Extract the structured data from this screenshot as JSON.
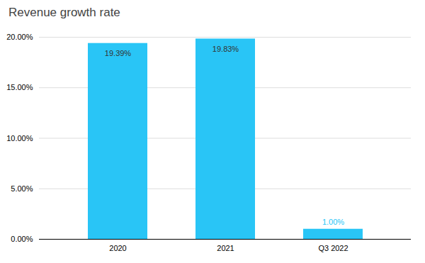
{
  "chart_data": {
    "type": "bar",
    "title": "Revenue growth rate",
    "categories": [
      "2020",
      "2021",
      "Q3 2022"
    ],
    "values": [
      19.39,
      19.83,
      1.0
    ],
    "value_labels": [
      "19.39%",
      "19.83%",
      "1.00%"
    ],
    "color": "#29C5F6",
    "ylim": [
      0,
      20
    ],
    "yticks": [
      {
        "value": 0,
        "label": "0.00%"
      },
      {
        "value": 5,
        "label": "5.00%"
      },
      {
        "value": 10,
        "label": "10.00%"
      },
      {
        "value": 15,
        "label": "15.00%"
      },
      {
        "value": 20,
        "label": "20.00%"
      }
    ],
    "grid": true,
    "data_labels": true
  }
}
